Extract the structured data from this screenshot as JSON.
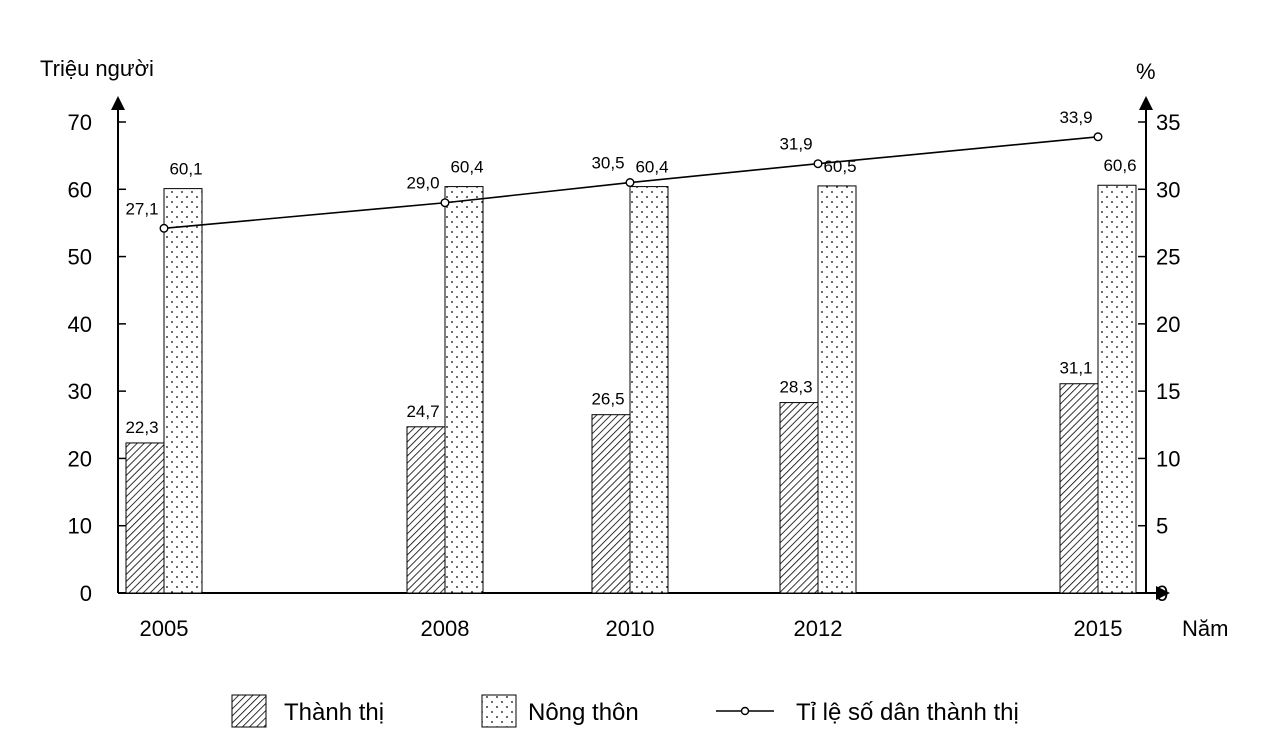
{
  "chart_data": {
    "type": "bar+line",
    "title": "",
    "x": [
      "2005",
      "2008",
      "2010",
      "2012",
      "2015"
    ],
    "xlabel": "Năm",
    "ylabel_left": "Triệu người",
    "ylabel_right": "%",
    "ylim_left": [
      0,
      70
    ],
    "yticks_left": [
      "0",
      "10",
      "20",
      "30",
      "40",
      "50",
      "60",
      "70"
    ],
    "ylim_right": [
      0,
      35
    ],
    "yticks_right": [
      "0",
      "5",
      "10",
      "15",
      "20",
      "25",
      "30",
      "35"
    ],
    "grid": false,
    "legend_position": "bottom",
    "series": [
      {
        "name": "Thành thị",
        "type": "bar",
        "axis": "left",
        "pattern": "hatch",
        "values": [
          22.3,
          24.7,
          26.5,
          28.3,
          31.1
        ],
        "labels": [
          "22,3",
          "24,7",
          "26,5",
          "28,3",
          "31,1"
        ]
      },
      {
        "name": "Nông thôn",
        "type": "bar",
        "axis": "left",
        "pattern": "dots",
        "values": [
          60.1,
          60.4,
          60.4,
          60.5,
          60.6
        ],
        "labels": [
          "60,1",
          "60,4",
          "60,4",
          "60,5",
          "60,6"
        ]
      },
      {
        "name": "Tỉ lệ số dân thành thị",
        "type": "line",
        "axis": "right",
        "marker": "circle",
        "values": [
          27.1,
          29.0,
          30.5,
          31.9,
          33.9
        ],
        "labels": [
          "27,1",
          "29,0",
          "30,5",
          "31,9",
          "33,9"
        ]
      }
    ]
  },
  "legend": {
    "items": [
      {
        "label": "Thành thị",
        "icon": "hatch-swatch"
      },
      {
        "label": "Nông thôn",
        "icon": "dot-swatch"
      },
      {
        "label": "Tỉ lệ số dân thành thị",
        "icon": "line-marker"
      }
    ]
  }
}
